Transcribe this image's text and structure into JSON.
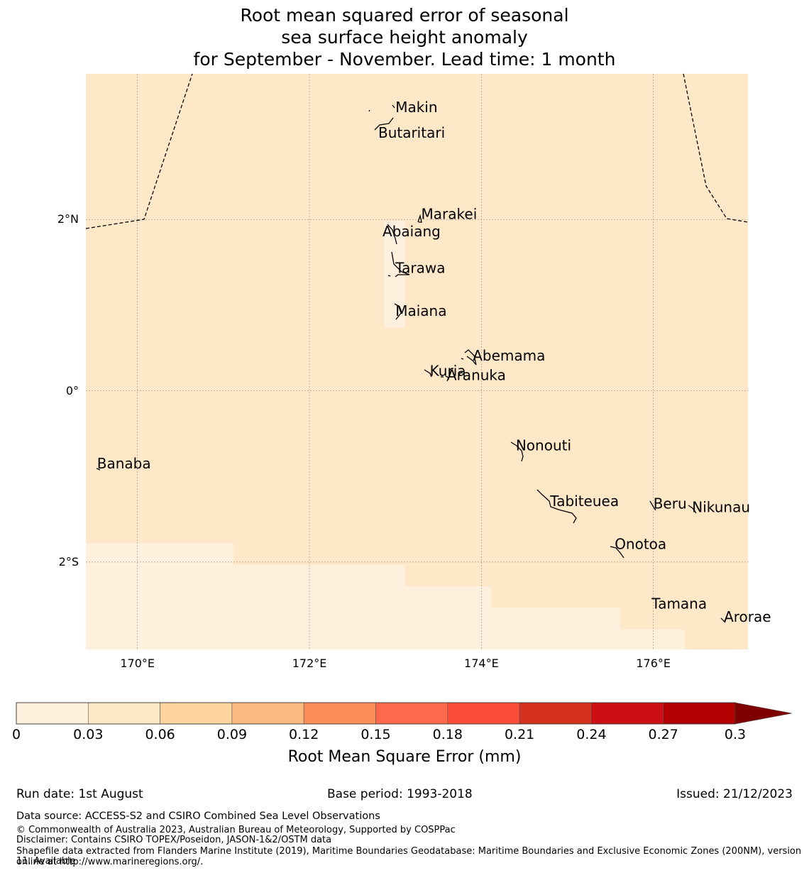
{
  "title": {
    "line1": "Root mean squared error of seasonal",
    "line2": "sea surface height anomaly",
    "line3": "for September - November. Lead time: 1 month"
  },
  "map": {
    "lon_range": [
      169.4,
      177.1
    ],
    "lat_range": [
      -3.02,
      3.7
    ],
    "fill_color": "#fee8c8",
    "low_color": "#fff0dd",
    "lon_ticks": [
      {
        "value": 170,
        "label": "170°E"
      },
      {
        "value": 172,
        "label": "172°E"
      },
      {
        "value": 174,
        "label": "174°E"
      },
      {
        "value": 176,
        "label": "176°E"
      }
    ],
    "lat_ticks": [
      {
        "value": 2,
        "label": "2°N"
      },
      {
        "value": 0,
        "label": "0°"
      },
      {
        "value": -2,
        "label": "2°S"
      }
    ],
    "places": [
      {
        "name": "Makin",
        "lon": 173.0,
        "lat": 3.3
      },
      {
        "name": "Butaritari",
        "lon": 172.8,
        "lat": 3.0
      },
      {
        "name": "Marakei",
        "lon": 173.3,
        "lat": 2.05
      },
      {
        "name": "Abaiang",
        "lon": 172.85,
        "lat": 1.85
      },
      {
        "name": "Tarawa",
        "lon": 173.0,
        "lat": 1.42
      },
      {
        "name": "Maiana",
        "lon": 173.0,
        "lat": 0.92
      },
      {
        "name": "Abemama",
        "lon": 173.9,
        "lat": 0.4
      },
      {
        "name": "Kuria",
        "lon": 173.4,
        "lat": 0.22
      },
      {
        "name": "Aranuka",
        "lon": 173.6,
        "lat": 0.17
      },
      {
        "name": "Nonouti",
        "lon": 174.4,
        "lat": -0.65
      },
      {
        "name": "Banaba",
        "lon": 169.53,
        "lat": -0.86
      },
      {
        "name": "Tabiteuea",
        "lon": 174.8,
        "lat": -1.3
      },
      {
        "name": "Beru",
        "lon": 176.0,
        "lat": -1.33
      },
      {
        "name": "Nikunau",
        "lon": 176.45,
        "lat": -1.37
      },
      {
        "name": "Onotoa",
        "lon": 175.55,
        "lat": -1.8
      },
      {
        "name": "Tamana",
        "lon": 175.98,
        "lat": -2.5
      },
      {
        "name": "Arorae",
        "lon": 176.82,
        "lat": -2.65
      }
    ]
  },
  "colorbar": {
    "title": "Root Mean Square Error (mm)",
    "boundaries": [
      "0",
      "0.03",
      "0.06",
      "0.09",
      "0.12",
      "0.15",
      "0.18",
      "0.21",
      "0.24",
      "0.27",
      "0.3"
    ],
    "colors": [
      "#fff0dd",
      "#fee8c8",
      "#fdd49e",
      "#fdbb84",
      "#fc8d59",
      "#fc6a4b",
      "#fb4a36",
      "#d7301f",
      "#cb0f14",
      "#b30000",
      "#7f0000"
    ]
  },
  "footer": {
    "run_date": "Run date: 1st August",
    "base_period": "Base period: 1993-2018",
    "issued": "Issued: 21/12/2023",
    "data_source": "Data source: ACCESS-S2 and CSIRO Combined Sea Level Observations",
    "copyright": "© Commonwealth of Australia 2023, Australian Bureau of Meteorology, Supported by COSPPac",
    "disclaimer": "Disclaimer: Contains CSIRO TOPEX/Poseidon, JASON-1&2/OSTM data",
    "shapefile1": "Shapefile data extracted from Flanders Marine Institute (2019), Maritime Boundaries Geodatabase: Maritime Boundaries and Exclusive Economic Zones (200NM), version 11. Available",
    "shapefile2": "online at http://www.marineregions.org/."
  }
}
